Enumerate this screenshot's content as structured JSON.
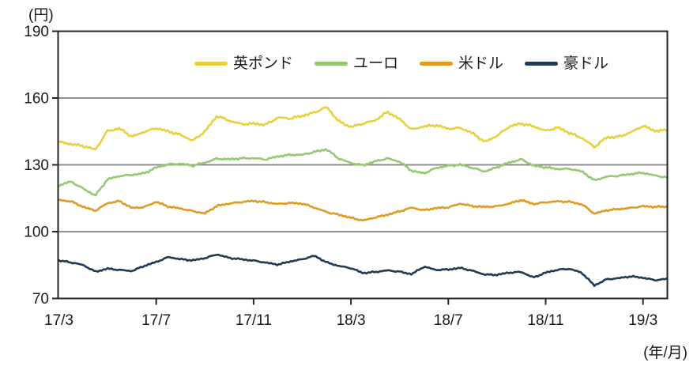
{
  "chart": {
    "unit_label": "(円)",
    "axis_caption": "(年/月)"
  },
  "legend": {
    "items": [
      {
        "label": "英ポンド",
        "color": "#e7d13a"
      },
      {
        "label": "ユーロ",
        "color": "#95c873"
      },
      {
        "label": "米ドル",
        "color": "#e09a22"
      },
      {
        "label": "豪ドル",
        "color": "#1e3a55"
      }
    ]
  },
  "chart_data": {
    "type": "line",
    "title": "",
    "ylabel": "(円)",
    "xlabel": "(年/月)",
    "ylim": [
      70,
      190
    ],
    "yticks": [
      190,
      160,
      130,
      100,
      70
    ],
    "ytick_labels": [
      "190",
      "160",
      "130",
      "100",
      "70"
    ],
    "xtick_labels": [
      "17/3",
      "17/7",
      "17/11",
      "18/3",
      "18/7",
      "18/11",
      "19/3"
    ],
    "xtick_month_index": [
      0,
      4,
      8,
      12,
      16,
      20,
      24
    ],
    "x_start": "17/3",
    "x_end": "19/4",
    "x_step_months": 0.5,
    "x_total_months": 25,
    "grid": "horizontal",
    "grid_color": "#7f7f7f",
    "axis_color": "#262626",
    "legend_position": "top",
    "series": [
      {
        "name": "英ポンド",
        "color": "#e7d13a",
        "values": [
          140.3,
          139.3,
          138.5,
          136.8,
          145.3,
          146.3,
          142.6,
          144.8,
          146.5,
          145.0,
          143.5,
          140.8,
          145.0,
          152.0,
          149.8,
          148.3,
          148.5,
          148.0,
          151.3,
          150.8,
          152.0,
          153.5,
          156.0,
          149.5,
          147.0,
          148.5,
          150.0,
          153.8,
          150.5,
          145.8,
          147.3,
          147.8,
          146.2,
          146.6,
          144.2,
          140.3,
          143.0,
          147.2,
          148.6,
          147.3,
          145.3,
          146.8,
          144.2,
          142.0,
          138.0,
          142.3,
          142.6,
          144.6,
          147.5,
          145.2,
          145.6
        ]
      },
      {
        "name": "ユーロ",
        "color": "#95c873",
        "values": [
          120.8,
          122.5,
          119.3,
          116.2,
          123.5,
          125.0,
          125.5,
          126.2,
          128.8,
          130.2,
          130.5,
          129.6,
          131.0,
          132.8,
          132.5,
          132.9,
          133.0,
          132.4,
          133.8,
          134.5,
          134.5,
          135.8,
          137.0,
          132.8,
          130.8,
          129.8,
          131.6,
          132.9,
          131.4,
          127.3,
          126.2,
          128.6,
          129.6,
          130.1,
          128.6,
          127.0,
          128.9,
          131.0,
          132.5,
          129.6,
          128.9,
          128.1,
          128.2,
          127.0,
          123.0,
          124.7,
          125.1,
          125.9,
          126.4,
          125.2,
          124.3
        ]
      },
      {
        "name": "米ドル",
        "color": "#e09a22",
        "values": [
          114.2,
          113.6,
          111.1,
          109.4,
          112.8,
          113.7,
          110.6,
          111.0,
          113.4,
          111.2,
          110.4,
          109.2,
          108.2,
          111.6,
          112.6,
          113.3,
          113.8,
          113.2,
          112.4,
          112.9,
          112.6,
          110.8,
          108.8,
          107.6,
          106.2,
          105.0,
          106.4,
          107.6,
          109.1,
          110.8,
          109.6,
          110.6,
          110.9,
          112.6,
          111.4,
          111.1,
          111.4,
          112.6,
          114.2,
          112.4,
          113.2,
          113.6,
          113.4,
          112.2,
          108.1,
          109.6,
          110.1,
          110.7,
          111.4,
          111.1,
          111.3
        ]
      },
      {
        "name": "豪ドル",
        "color": "#1e3a55",
        "values": [
          87.0,
          86.2,
          85.0,
          82.0,
          83.4,
          82.8,
          82.3,
          84.6,
          86.4,
          88.6,
          87.6,
          87.1,
          88.1,
          89.8,
          88.2,
          87.6,
          87.0,
          86.1,
          85.2,
          86.6,
          87.6,
          89.2,
          86.2,
          84.6,
          83.6,
          81.4,
          81.9,
          82.6,
          82.0,
          80.9,
          84.3,
          82.8,
          83.0,
          83.7,
          82.4,
          80.7,
          80.6,
          81.6,
          81.9,
          79.4,
          81.6,
          82.9,
          83.3,
          81.4,
          75.8,
          78.6,
          79.1,
          79.9,
          79.3,
          78.2,
          78.8
        ]
      }
    ]
  }
}
